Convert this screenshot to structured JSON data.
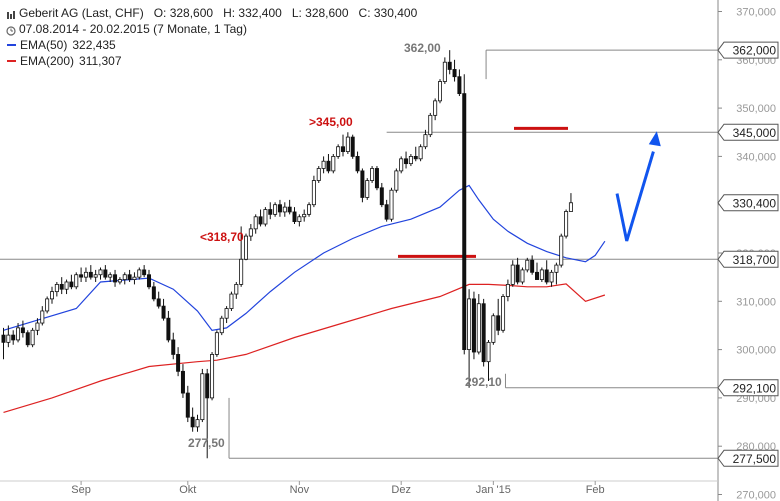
{
  "legend": {
    "instrument": "Geberit AG (Last, CHF)",
    "open": "O: 328,600",
    "high": "H: 332,400",
    "low": "L: 328,600",
    "close": "C: 330,400",
    "range": "07.08.2014 - 20.02.2015 (7 Monate, 1 Tag)",
    "ema50_label": "EMA(50)",
    "ema50_value": "322,435",
    "ema200_label": "EMA(200)",
    "ema200_value": "311,307"
  },
  "colors": {
    "ema50": "#2244dd",
    "ema200": "#dd2222",
    "candle": "#111111",
    "axis": "#888888",
    "arrow": "#1155ee",
    "annotation_red": "#cc1111"
  },
  "chart_data": {
    "type": "candlestick",
    "ylim": [
      270,
      370
    ],
    "y_ticks": [
      270,
      280,
      290,
      300,
      310,
      320,
      330,
      340,
      350,
      360,
      370
    ],
    "y_tick_labels": [
      "270,000",
      "280,000",
      "290,000",
      "300,000",
      "310,000",
      "320,000",
      "330,000",
      "340,000",
      "350,000",
      "360,000",
      "370,000"
    ],
    "x_ticks": [
      {
        "label": "Sep",
        "i": 16
      },
      {
        "label": "Okt",
        "i": 38
      },
      {
        "label": "Nov",
        "i": 61
      },
      {
        "label": "Dez",
        "i": 82
      },
      {
        "label": "Jan '15",
        "i": 101
      },
      {
        "label": "Feb",
        "i": 122
      }
    ],
    "candles": [
      [
        303.0,
        304.5,
        298.0,
        301.5
      ],
      [
        301.5,
        305.0,
        300.5,
        303.0
      ],
      [
        303.0,
        304.0,
        301.0,
        302.0
      ],
      [
        302.0,
        305.5,
        301.5,
        304.5
      ],
      [
        304.5,
        306.0,
        302.5,
        303.5
      ],
      [
        303.5,
        304.0,
        300.5,
        301.0
      ],
      [
        301.0,
        304.5,
        300.5,
        304.0
      ],
      [
        304.0,
        306.5,
        303.0,
        305.5
      ],
      [
        305.5,
        309.0,
        305.0,
        308.0
      ],
      [
        308.0,
        311.0,
        307.5,
        310.5
      ],
      [
        310.5,
        313.0,
        309.5,
        312.0
      ],
      [
        312.0,
        314.0,
        311.0,
        313.5
      ],
      [
        313.5,
        315.0,
        311.5,
        312.5
      ],
      [
        312.5,
        314.5,
        311.5,
        314.0
      ],
      [
        314.0,
        315.5,
        312.5,
        313.0
      ],
      [
        313.0,
        316.0,
        312.5,
        315.5
      ],
      [
        315.5,
        317.0,
        314.0,
        315.0
      ],
      [
        315.0,
        317.0,
        314.0,
        316.0
      ],
      [
        316.0,
        317.5,
        314.5,
        315.0
      ],
      [
        315.0,
        316.5,
        314.0,
        315.5
      ],
      [
        315.5,
        317.0,
        314.5,
        316.5
      ],
      [
        316.5,
        317.5,
        314.5,
        315.0
      ],
      [
        315.0,
        316.0,
        314.0,
        315.5
      ],
      [
        315.5,
        316.5,
        313.0,
        314.0
      ],
      [
        314.0,
        315.0,
        313.5,
        314.5
      ],
      [
        314.5,
        316.0,
        313.5,
        315.5
      ],
      [
        315.5,
        316.5,
        314.0,
        314.5
      ],
      [
        314.5,
        316.0,
        313.5,
        315.0
      ],
      [
        315.0,
        317.0,
        314.5,
        316.5
      ],
      [
        316.5,
        317.5,
        315.0,
        315.5
      ],
      [
        315.5,
        316.5,
        312.5,
        313.0
      ],
      [
        313.0,
        314.0,
        310.0,
        310.5
      ],
      [
        310.5,
        312.0,
        308.5,
        309.0
      ],
      [
        309.0,
        310.5,
        306.0,
        306.5
      ],
      [
        306.5,
        308.0,
        301.5,
        302.0
      ],
      [
        302.0,
        303.5,
        298.0,
        299.0
      ],
      [
        299.0,
        300.5,
        294.5,
        295.5
      ],
      [
        295.5,
        297.0,
        290.0,
        291.0
      ],
      [
        291.0,
        292.5,
        285.0,
        286.0
      ],
      [
        286.0,
        288.0,
        283.0,
        284.0
      ],
      [
        284.0,
        286.5,
        283.0,
        285.5
      ],
      [
        285.5,
        296.0,
        285.0,
        295.0
      ],
      [
        295.0,
        296.0,
        277.5,
        290.0
      ],
      [
        290.0,
        299.5,
        289.5,
        299.0
      ],
      [
        299.0,
        304.0,
        298.5,
        303.5
      ],
      [
        303.5,
        307.0,
        303.0,
        306.5
      ],
      [
        306.5,
        309.0,
        305.5,
        308.5
      ],
      [
        308.5,
        312.0,
        308.0,
        311.5
      ],
      [
        311.5,
        314.0,
        310.5,
        313.5
      ],
      [
        313.5,
        325.5,
        313.0,
        318.7
      ],
      [
        318.7,
        324.0,
        318.5,
        323.5
      ],
      [
        323.5,
        326.0,
        322.5,
        325.0
      ],
      [
        325.0,
        328.0,
        324.0,
        327.5
      ],
      [
        327.5,
        329.0,
        325.5,
        326.0
      ],
      [
        326.0,
        329.5,
        325.5,
        329.0
      ],
      [
        329.0,
        330.5,
        327.0,
        328.0
      ],
      [
        328.0,
        330.5,
        327.5,
        330.0
      ],
      [
        330.0,
        331.0,
        327.5,
        328.5
      ],
      [
        328.5,
        330.5,
        327.5,
        329.5
      ],
      [
        329.5,
        331.0,
        328.0,
        328.5
      ],
      [
        328.5,
        329.5,
        326.0,
        326.5
      ],
      [
        326.5,
        328.0,
        325.5,
        327.5
      ],
      [
        327.5,
        329.0,
        326.5,
        328.0
      ],
      [
        328.0,
        330.5,
        327.5,
        330.0
      ],
      [
        330.0,
        336.0,
        329.5,
        335.0
      ],
      [
        335.0,
        338.0,
        334.5,
        337.5
      ],
      [
        337.5,
        340.0,
        336.5,
        339.0
      ],
      [
        339.0,
        340.5,
        336.5,
        337.0
      ],
      [
        337.0,
        340.5,
        336.5,
        340.0
      ],
      [
        340.0,
        342.5,
        339.5,
        342.0
      ],
      [
        342.0,
        344.5,
        340.0,
        341.0
      ],
      [
        341.0,
        345.0,
        340.5,
        344.0
      ],
      [
        344.0,
        344.5,
        339.5,
        340.0
      ],
      [
        340.0,
        341.0,
        336.5,
        337.0
      ],
      [
        337.0,
        337.5,
        330.5,
        331.5
      ],
      [
        331.5,
        335.5,
        331.0,
        335.0
      ],
      [
        335.0,
        338.0,
        334.5,
        337.5
      ],
      [
        337.5,
        338.0,
        333.0,
        333.5
      ],
      [
        333.5,
        334.5,
        329.5,
        330.0
      ],
      [
        330.0,
        331.0,
        326.5,
        327.0
      ],
      [
        327.0,
        333.5,
        326.5,
        333.0
      ],
      [
        333.0,
        337.5,
        332.5,
        337.0
      ],
      [
        337.0,
        340.0,
        336.5,
        339.5
      ],
      [
        339.5,
        341.0,
        337.5,
        338.5
      ],
      [
        338.5,
        340.5,
        338.0,
        340.0
      ],
      [
        340.0,
        342.0,
        339.0,
        339.5
      ],
      [
        339.5,
        342.5,
        339.0,
        342.0
      ],
      [
        342.0,
        345.5,
        341.5,
        344.5
      ],
      [
        344.5,
        349.0,
        344.0,
        348.5
      ],
      [
        348.5,
        352.0,
        347.5,
        351.5
      ],
      [
        351.5,
        356.0,
        351.0,
        355.5
      ],
      [
        355.5,
        360.5,
        355.0,
        359.5
      ],
      [
        359.5,
        362.0,
        357.0,
        358.0
      ],
      [
        358.0,
        360.0,
        355.5,
        356.5
      ],
      [
        356.5,
        358.0,
        352.5,
        353.0
      ],
      [
        353.0,
        357.0,
        299.0,
        300.0
      ],
      [
        300.0,
        312.5,
        292.1,
        310.5
      ],
      [
        310.5,
        312.0,
        298.0,
        299.5
      ],
      [
        299.5,
        311.5,
        299.0,
        309.5
      ],
      [
        309.5,
        310.5,
        296.5,
        297.5
      ],
      [
        297.5,
        302.0,
        293.5,
        301.5
      ],
      [
        301.5,
        307.5,
        301.0,
        307.0
      ],
      [
        307.0,
        310.5,
        303.0,
        304.0
      ],
      [
        304.0,
        311.5,
        303.5,
        311.0
      ],
      [
        311.0,
        314.5,
        310.0,
        313.5
      ],
      [
        313.5,
        318.5,
        313.0,
        317.5
      ],
      [
        317.5,
        319.0,
        313.5,
        314.0
      ],
      [
        314.0,
        317.0,
        313.5,
        316.5
      ],
      [
        316.5,
        319.0,
        316.0,
        318.5
      ],
      [
        318.5,
        319.5,
        315.5,
        316.0
      ],
      [
        316.0,
        318.0,
        314.5,
        314.5
      ],
      [
        314.5,
        317.0,
        314.0,
        316.5
      ],
      [
        316.5,
        318.5,
        313.5,
        314.0
      ],
      [
        314.0,
        316.5,
        313.0,
        316.0
      ],
      [
        316.0,
        318.0,
        313.5,
        317.5
      ],
      [
        317.5,
        324.0,
        317.0,
        323.5
      ],
      [
        323.5,
        329.0,
        323.0,
        328.6
      ],
      [
        328.6,
        332.4,
        328.6,
        330.4
      ]
    ],
    "ema50": [
      [
        0,
        304.0
      ],
      [
        15,
        308.5
      ],
      [
        20,
        314.0
      ],
      [
        30,
        314.8
      ],
      [
        35,
        312.5
      ],
      [
        40,
        308.0
      ],
      [
        43,
        304.0
      ],
      [
        46,
        304.5
      ],
      [
        50,
        307.5
      ],
      [
        55,
        312.0
      ],
      [
        60,
        316.0
      ],
      [
        66,
        320.0
      ],
      [
        72,
        323.0
      ],
      [
        78,
        325.5
      ],
      [
        84,
        327.0
      ],
      [
        90,
        329.5
      ],
      [
        94,
        333.0
      ],
      [
        96,
        334.0
      ],
      [
        98,
        331.0
      ],
      [
        101,
        327.0
      ],
      [
        104,
        324.5
      ],
      [
        108,
        322.0
      ],
      [
        112,
        320.3
      ],
      [
        116,
        319.0
      ],
      [
        120,
        318.2
      ],
      [
        122,
        319.5
      ],
      [
        124,
        322.435
      ]
    ],
    "ema200": [
      [
        0,
        287.0
      ],
      [
        10,
        290.0
      ],
      [
        20,
        293.5
      ],
      [
        30,
        296.5
      ],
      [
        40,
        297.5
      ],
      [
        44,
        297.8
      ],
      [
        50,
        299.0
      ],
      [
        60,
        302.5
      ],
      [
        70,
        305.5
      ],
      [
        80,
        308.5
      ],
      [
        90,
        311.0
      ],
      [
        96,
        313.5
      ],
      [
        100,
        313.5
      ],
      [
        104,
        313.3
      ],
      [
        108,
        313.0
      ],
      [
        112,
        313.0
      ],
      [
        116,
        313.6
      ],
      [
        120,
        310.0
      ],
      [
        124,
        311.307
      ]
    ],
    "annotations": [
      {
        "label": "362,00",
        "value": 362.0,
        "type": "high"
      },
      {
        "label": ">345,00",
        "value": 345.0,
        "type": "resistance"
      },
      {
        "label": "<318,70",
        "value": 318.7,
        "type": "support"
      },
      {
        "label": "292,10",
        "value": 292.1,
        "type": "low"
      },
      {
        "label": "277,50",
        "value": 277.5,
        "type": "low"
      }
    ],
    "price_tags": [
      "362,000",
      "345,000",
      "330,400",
      "318,700",
      "292,100",
      "277,500"
    ],
    "price_tag_values": [
      362.0,
      345.0,
      330.4,
      318.7,
      292.1,
      277.5
    ]
  }
}
